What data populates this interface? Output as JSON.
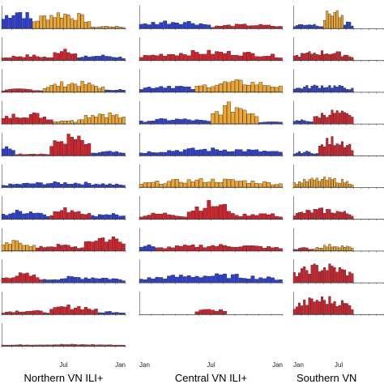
{
  "colors": {
    "A": "#2b3fd6",
    "B": "#d8202a",
    "C": "#f0a62e",
    "edge": "#1a1a1a",
    "axis": "#444444"
  },
  "chart_data": {
    "type": "bar",
    "layout": "small-multiples",
    "rows": 11,
    "bins_per_year": 36,
    "x_ticks": [
      "Jan",
      "Jul",
      "Jan"
    ],
    "groups": [
      {
        "label": "Northern VN ILI+",
        "tick_labels_shown": [
          "Jul",
          "Jan"
        ],
        "panels": [
          {
            "segments": [
              {
                "from": 0,
                "to": 9,
                "color": "A",
                "peak": 1.0
              },
              {
                "from": 9,
                "to": 26,
                "color": "C",
                "peak": 0.85
              },
              {
                "from": 26,
                "to": 36,
                "color": "C",
                "peak": 0.12
              }
            ]
          },
          {
            "segments": [
              {
                "from": 0,
                "to": 15,
                "color": "B",
                "peak": 0.25
              },
              {
                "from": 15,
                "to": 22,
                "color": "B",
                "peak": 0.7
              },
              {
                "from": 22,
                "to": 36,
                "color": "A",
                "peak": 0.25
              }
            ]
          },
          {
            "segments": [
              {
                "from": 0,
                "to": 12,
                "color": "B",
                "peak": 0.15
              },
              {
                "from": 12,
                "to": 30,
                "color": "C",
                "peak": 0.5
              },
              {
                "from": 30,
                "to": 36,
                "color": "A",
                "peak": 0.15
              }
            ]
          },
          {
            "segments": [
              {
                "from": 0,
                "to": 15,
                "color": "B",
                "peak": 0.55
              },
              {
                "from": 15,
                "to": 22,
                "color": "C",
                "peak": 0.2
              },
              {
                "from": 22,
                "to": 36,
                "color": "C",
                "peak": 0.6
              }
            ]
          },
          {
            "segments": [
              {
                "from": 0,
                "to": 4,
                "color": "A",
                "peak": 0.5
              },
              {
                "from": 4,
                "to": 14,
                "color": "B",
                "peak": 0.1
              },
              {
                "from": 14,
                "to": 26,
                "color": "B",
                "peak": 1.0
              },
              {
                "from": 26,
                "to": 36,
                "color": "A",
                "peak": 0.2
              }
            ]
          },
          {
            "segments": [
              {
                "from": 0,
                "to": 36,
                "color": "A",
                "peak": 0.25
              }
            ]
          },
          {
            "segments": [
              {
                "from": 0,
                "to": 14,
                "color": "A",
                "peak": 0.45
              },
              {
                "from": 14,
                "to": 26,
                "color": "B",
                "peak": 0.55
              },
              {
                "from": 26,
                "to": 36,
                "color": "A",
                "peak": 0.3
              }
            ]
          },
          {
            "segments": [
              {
                "from": 0,
                "to": 10,
                "color": "C",
                "peak": 0.5
              },
              {
                "from": 10,
                "to": 24,
                "color": "B",
                "peak": 0.3
              },
              {
                "from": 24,
                "to": 36,
                "color": "B",
                "peak": 0.75
              }
            ]
          },
          {
            "segments": [
              {
                "from": 0,
                "to": 12,
                "color": "B",
                "peak": 0.45
              },
              {
                "from": 12,
                "to": 36,
                "color": "A",
                "peak": 0.3
              }
            ]
          },
          {
            "segments": [
              {
                "from": 0,
                "to": 14,
                "color": "B",
                "peak": 0.2
              },
              {
                "from": 14,
                "to": 28,
                "color": "B",
                "peak": 0.45
              },
              {
                "from": 28,
                "to": 36,
                "color": "A",
                "peak": 0.15
              }
            ]
          },
          {
            "segments": [
              {
                "from": 0,
                "to": 36,
                "color": "B",
                "peak": 0.08
              }
            ]
          }
        ]
      },
      {
        "label": "Central VN ILI+",
        "tick_labels_shown": [
          "Jan",
          "Jul",
          "Jan"
        ],
        "panels": [
          {
            "segments": [
              {
                "from": 0,
                "to": 18,
                "color": "A",
                "peak": 0.4
              },
              {
                "from": 18,
                "to": 36,
                "color": "B",
                "peak": 0.2
              }
            ]
          },
          {
            "segments": [
              {
                "from": 0,
                "to": 36,
                "color": "B",
                "peak": 0.45
              }
            ]
          },
          {
            "segments": [
              {
                "from": 0,
                "to": 14,
                "color": "A",
                "peak": 0.35
              },
              {
                "from": 14,
                "to": 36,
                "color": "C",
                "peak": 0.55
              }
            ]
          },
          {
            "segments": [
              {
                "from": 0,
                "to": 18,
                "color": "A",
                "peak": 0.25
              },
              {
                "from": 18,
                "to": 30,
                "color": "C",
                "peak": 1.0
              },
              {
                "from": 30,
                "to": 36,
                "color": "A",
                "peak": 0.15
              }
            ]
          },
          {
            "segments": [
              {
                "from": 0,
                "to": 36,
                "color": "A",
                "peak": 0.35
              }
            ]
          },
          {
            "segments": [
              {
                "from": 0,
                "to": 36,
                "color": "C",
                "peak": 0.4
              }
            ]
          },
          {
            "segments": [
              {
                "from": 0,
                "to": 12,
                "color": "B",
                "peak": 0.3
              },
              {
                "from": 12,
                "to": 24,
                "color": "B",
                "peak": 0.85
              },
              {
                "from": 24,
                "to": 36,
                "color": "B",
                "peak": 0.3
              }
            ]
          },
          {
            "segments": [
              {
                "from": 0,
                "to": 4,
                "color": "A",
                "peak": 0.3
              },
              {
                "from": 4,
                "to": 36,
                "color": "B",
                "peak": 0.3
              }
            ]
          },
          {
            "segments": [
              {
                "from": 0,
                "to": 36,
                "color": "A",
                "peak": 0.4
              }
            ]
          },
          {
            "segments": [
              {
                "from": 0,
                "to": 14,
                "color": "B",
                "peak": 0.0
              },
              {
                "from": 14,
                "to": 22,
                "color": "B",
                "peak": 0.3
              },
              {
                "from": 22,
                "to": 36,
                "color": "B",
                "peak": 0.0
              }
            ]
          }
        ]
      },
      {
        "label": "Southern VN",
        "tick_labels_shown": [
          "Jan",
          "Jul"
        ],
        "panels": [
          {
            "segments": [
              {
                "from": 0,
                "to": 12,
                "color": "A",
                "peak": 0.25
              },
              {
                "from": 12,
                "to": 20,
                "color": "C",
                "peak": 1.0
              },
              {
                "from": 20,
                "to": 24,
                "color": "A",
                "peak": 0.3
              }
            ]
          },
          {
            "segments": [
              {
                "from": 0,
                "to": 24,
                "color": "B",
                "peak": 0.45
              }
            ]
          },
          {
            "segments": [
              {
                "from": 0,
                "to": 24,
                "color": "A",
                "peak": 0.35
              }
            ]
          },
          {
            "segments": [
              {
                "from": 0,
                "to": 8,
                "color": "A",
                "peak": 0.2
              },
              {
                "from": 8,
                "to": 24,
                "color": "B",
                "peak": 0.65
              }
            ]
          },
          {
            "segments": [
              {
                "from": 0,
                "to": 10,
                "color": "A",
                "peak": 0.2
              },
              {
                "from": 10,
                "to": 24,
                "color": "B",
                "peak": 0.9
              }
            ]
          },
          {
            "segments": [
              {
                "from": 0,
                "to": 24,
                "color": "C",
                "peak": 0.45
              }
            ]
          },
          {
            "segments": [
              {
                "from": 0,
                "to": 24,
                "color": "B",
                "peak": 0.5
              }
            ]
          },
          {
            "segments": [
              {
                "from": 0,
                "to": 8,
                "color": "B",
                "peak": 0.15
              },
              {
                "from": 8,
                "to": 24,
                "color": "C",
                "peak": 0.3
              }
            ]
          },
          {
            "segments": [
              {
                "from": 0,
                "to": 24,
                "color": "B",
                "peak": 0.9
              }
            ]
          },
          {
            "segments": [
              {
                "from": 0,
                "to": 24,
                "color": "B",
                "peak": 0.85
              }
            ]
          }
        ]
      }
    ]
  }
}
